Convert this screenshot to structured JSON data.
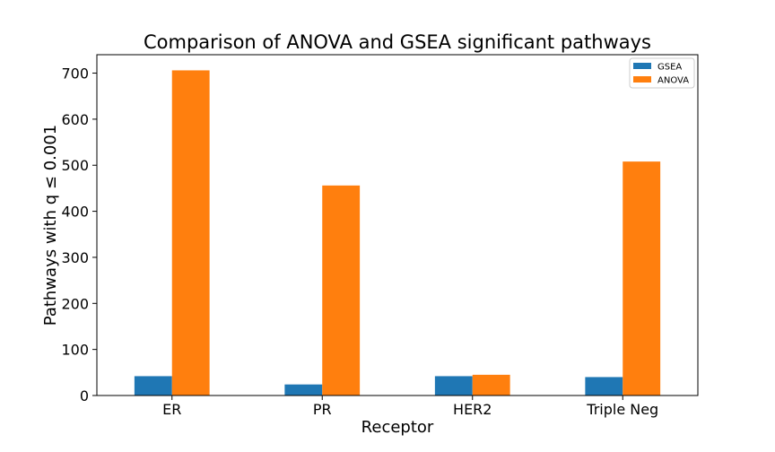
{
  "chart_data": {
    "type": "bar",
    "title": "Comparison of ANOVA and GSEA significant pathways",
    "xlabel": "Receptor",
    "ylabel": "Pathways with q ≤ 0.001",
    "categories": [
      "ER",
      "PR",
      "HER2",
      "Triple Neg"
    ],
    "series": [
      {
        "name": "GSEA",
        "values": [
          42,
          24,
          42,
          40
        ],
        "color": "#1f77b4"
      },
      {
        "name": "ANOVA",
        "values": [
          706,
          456,
          45,
          508
        ],
        "color": "#ff7f0e"
      }
    ],
    "ylim": [
      0,
      740
    ],
    "yticks": [
      0,
      100,
      200,
      300,
      400,
      500,
      600,
      700
    ],
    "grid": false,
    "legend_position": "top-right"
  }
}
